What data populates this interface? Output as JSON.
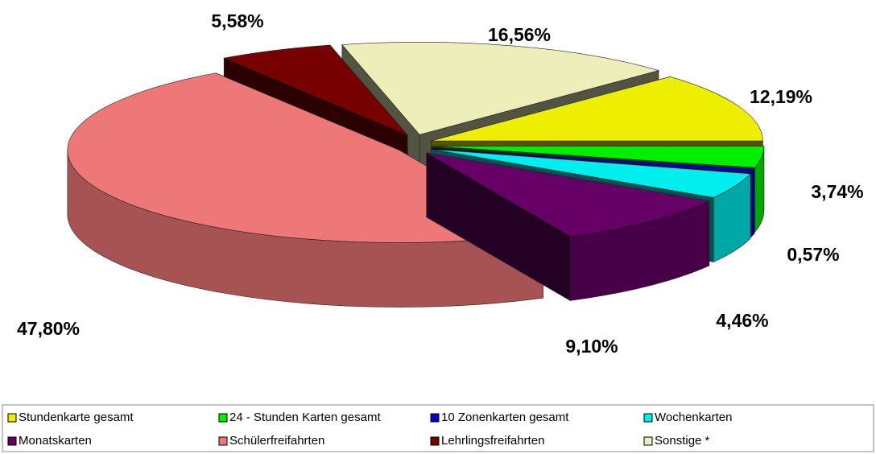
{
  "chart_data": {
    "type": "pie",
    "categories": [
      "Stundenkarte gesamt",
      "24 - Stunden Karten gesamt",
      "10 Zonenkarten gesamt",
      "Wochenkarten",
      "Monatskarten",
      "Schülerfreifahrten",
      "Lehrlingsfreifahrten",
      "Sonstige *"
    ],
    "values": [
      12.19,
      3.74,
      0.57,
      4.46,
      9.1,
      47.8,
      5.58,
      16.56
    ],
    "value_labels": [
      "12,19%",
      "3,74%",
      "0,57%",
      "4,46%",
      "9,10%",
      "47,80%",
      "5,58%",
      "16,56%"
    ],
    "colors": [
      "#eeee00",
      "#00ee00",
      "#0000cc",
      "#00eeee",
      "#660066",
      "#ee7777",
      "#770000",
      "#eeeebb"
    ],
    "legend": "bottom"
  }
}
